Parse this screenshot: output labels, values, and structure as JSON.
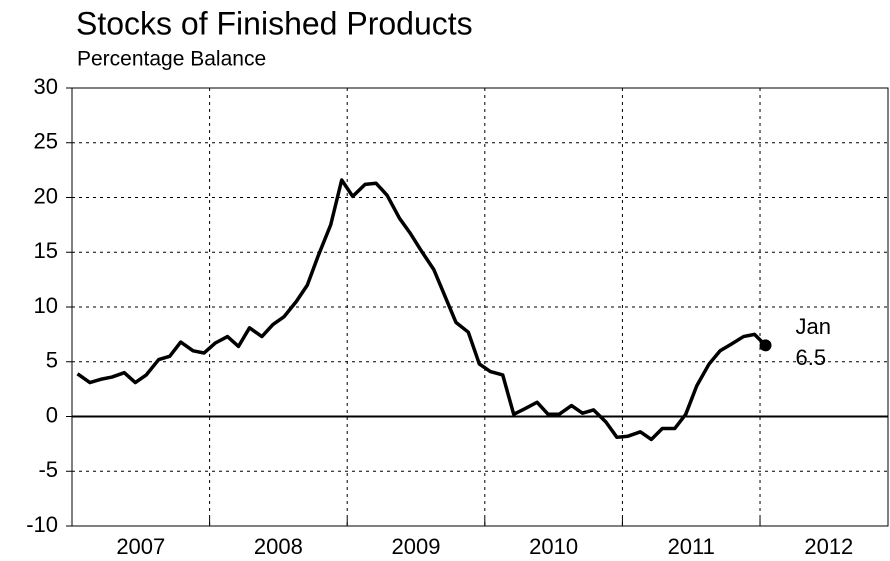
{
  "chart_data": {
    "type": "line",
    "title": "Stocks of Finished Products",
    "subtitle": "Percentage Balance",
    "annotation": "Jan",
    "series": [
      {
        "color": "#000000",
        "x": [
          2007.04,
          2007.13,
          2007.21,
          2007.29,
          2007.38,
          2007.46,
          2007.54,
          2007.63,
          2007.71,
          2007.79,
          2007.88,
          2007.96,
          2008.04,
          2008.13,
          2008.21,
          2008.29,
          2008.38,
          2008.46,
          2008.54,
          2008.63,
          2008.71,
          2008.79,
          2008.88,
          2008.96,
          2009.04,
          2009.13,
          2009.21,
          2009.29,
          2009.38,
          2009.46,
          2009.54,
          2009.63,
          2009.71,
          2009.79,
          2009.88,
          2009.96,
          2010.04,
          2010.13,
          2010.21,
          2010.29,
          2010.38,
          2010.46,
          2010.54,
          2010.63,
          2010.71,
          2010.79,
          2010.88,
          2010.96,
          2011.04,
          2011.13,
          2011.21,
          2011.29,
          2011.38,
          2011.46,
          2011.54,
          2011.63,
          2011.71,
          2011.79,
          2011.88,
          2011.96,
          2012.04
        ],
        "values": [
          3.9,
          3.1,
          3.4,
          3.6,
          4.0,
          3.1,
          3.8,
          5.2,
          5.5,
          6.8,
          6.0,
          5.8,
          6.7,
          7.3,
          6.4,
          8.1,
          7.3,
          8.4,
          9.1,
          10.5,
          12.0,
          14.7,
          17.5,
          21.6,
          20.1,
          21.2,
          21.3,
          20.2,
          18.1,
          16.7,
          15.1,
          13.4,
          11.0,
          8.6,
          7.7,
          4.8,
          4.1,
          3.8,
          0.2,
          0.7,
          1.3,
          0.2,
          0.2,
          1.0,
          0.3,
          0.6,
          -0.5,
          -1.9,
          -1.8,
          -1.4,
          -2.1,
          -1.1,
          -1.1,
          0.2,
          2.8,
          4.8,
          6.0,
          6.6,
          7.3,
          7.5,
          6.5
        ]
      }
    ],
    "xlim": [
      2007,
      2012.93
    ],
    "xticks": [
      {
        "value": 2007.5,
        "label": "2007"
      },
      {
        "value": 2008.5,
        "label": "2008"
      },
      {
        "value": 2009.5,
        "label": "2009"
      },
      {
        "value": 2010.5,
        "label": "2010"
      },
      {
        "value": 2011.5,
        "label": "2011"
      },
      {
        "value": 2012.5,
        "label": "2012"
      }
    ],
    "xgrid": [
      2008,
      2009,
      2010,
      2011,
      2012
    ],
    "ylim": [
      -10,
      30
    ],
    "yticks": [
      -10,
      -5,
      0,
      5,
      10,
      15,
      20,
      25,
      30
    ],
    "grid": true
  }
}
